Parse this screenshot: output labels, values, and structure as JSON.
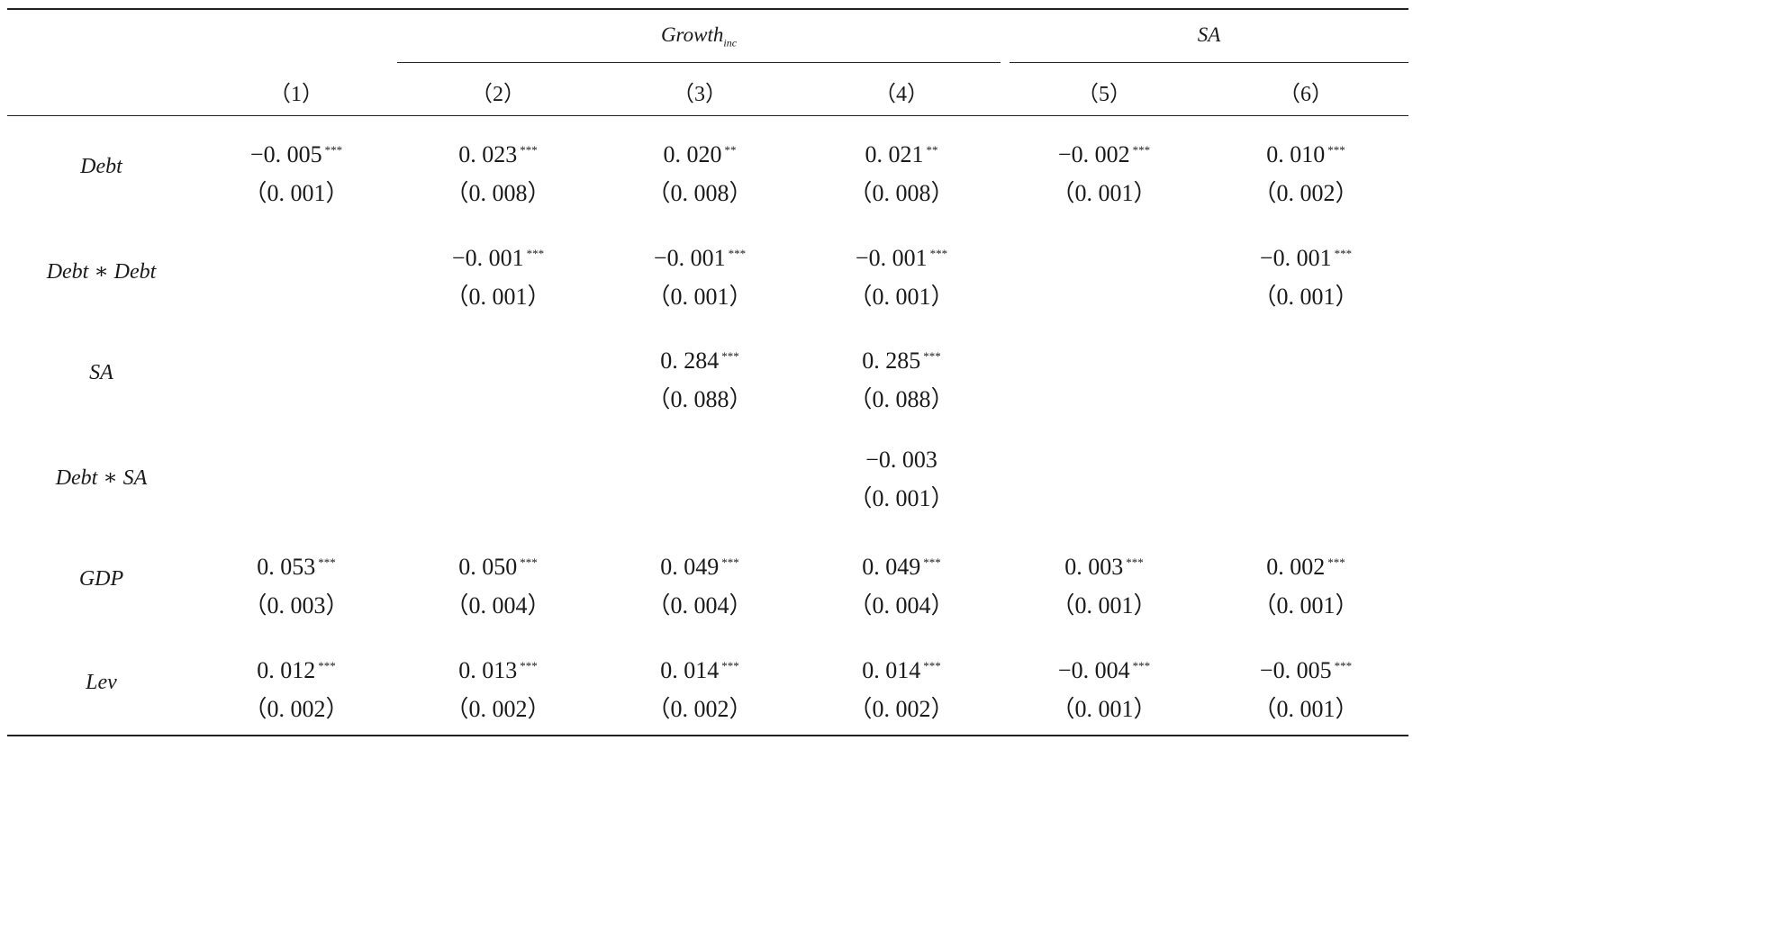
{
  "header": {
    "group_growth": {
      "main": "Growth",
      "sub": "inc"
    },
    "group_sa": "SA",
    "columns": [
      "（1）",
      "（2）",
      "（3）",
      "（4）",
      "（5）",
      "（6）"
    ]
  },
  "rows": [
    {
      "label": "Debt",
      "cells": [
        {
          "coef": "−0. 005",
          "stars": "***",
          "se": "（0. 001）"
        },
        {
          "coef": "0. 023",
          "stars": "***",
          "se": "（0. 008）"
        },
        {
          "coef": "0. 020",
          "stars": "**",
          "se": "（0. 008）"
        },
        {
          "coef": "0. 021",
          "stars": "**",
          "se": "（0. 008）"
        },
        {
          "coef": "−0. 002",
          "stars": "***",
          "se": "（0. 001）"
        },
        {
          "coef": "0. 010",
          "stars": "***",
          "se": "（0. 002）"
        }
      ]
    },
    {
      "label": "Debt ∗ Debt",
      "cells": [
        null,
        {
          "coef": "−0. 001",
          "stars": "***",
          "se": "（0. 001）"
        },
        {
          "coef": "−0. 001",
          "stars": "***",
          "se": "（0. 001）"
        },
        {
          "coef": "−0. 001",
          "stars": "***",
          "se": "（0. 001）"
        },
        null,
        {
          "coef": "−0. 001",
          "stars": "***",
          "se": "（0. 001）"
        }
      ]
    },
    {
      "label": "SA",
      "cells": [
        null,
        null,
        {
          "coef": "0. 284",
          "stars": "***",
          "se": "（0. 088）"
        },
        {
          "coef": "0. 285",
          "stars": "***",
          "se": "（0. 088）"
        },
        null,
        null
      ]
    },
    {
      "label": "Debt ∗ SA",
      "cells": [
        null,
        null,
        null,
        {
          "coef": "−0. 003",
          "stars": "",
          "se": "（0. 001）"
        },
        null,
        null
      ]
    },
    {
      "label": "GDP",
      "cells": [
        {
          "coef": "0. 053",
          "stars": "***",
          "se": "（0. 003）"
        },
        {
          "coef": "0. 050",
          "stars": "***",
          "se": "（0. 004）"
        },
        {
          "coef": "0. 049",
          "stars": "***",
          "se": "（0. 004）"
        },
        {
          "coef": "0. 049",
          "stars": "***",
          "se": "（0. 004）"
        },
        {
          "coef": "0. 003",
          "stars": "***",
          "se": "（0. 001）"
        },
        {
          "coef": "0. 002",
          "stars": "***",
          "se": "（0. 001）"
        }
      ]
    },
    {
      "label": "Lev",
      "cells": [
        {
          "coef": "0. 012",
          "stars": "***",
          "se": "（0. 002）"
        },
        {
          "coef": "0. 013",
          "stars": "***",
          "se": "（0. 002）"
        },
        {
          "coef": "0. 014",
          "stars": "***",
          "se": "（0. 002）"
        },
        {
          "coef": "0. 014",
          "stars": "***",
          "se": "（0. 002）"
        },
        {
          "coef": "−0. 004",
          "stars": "***",
          "se": "（0. 001）"
        },
        {
          "coef": "−0. 005",
          "stars": "***",
          "se": "（0. 001）"
        }
      ]
    }
  ]
}
